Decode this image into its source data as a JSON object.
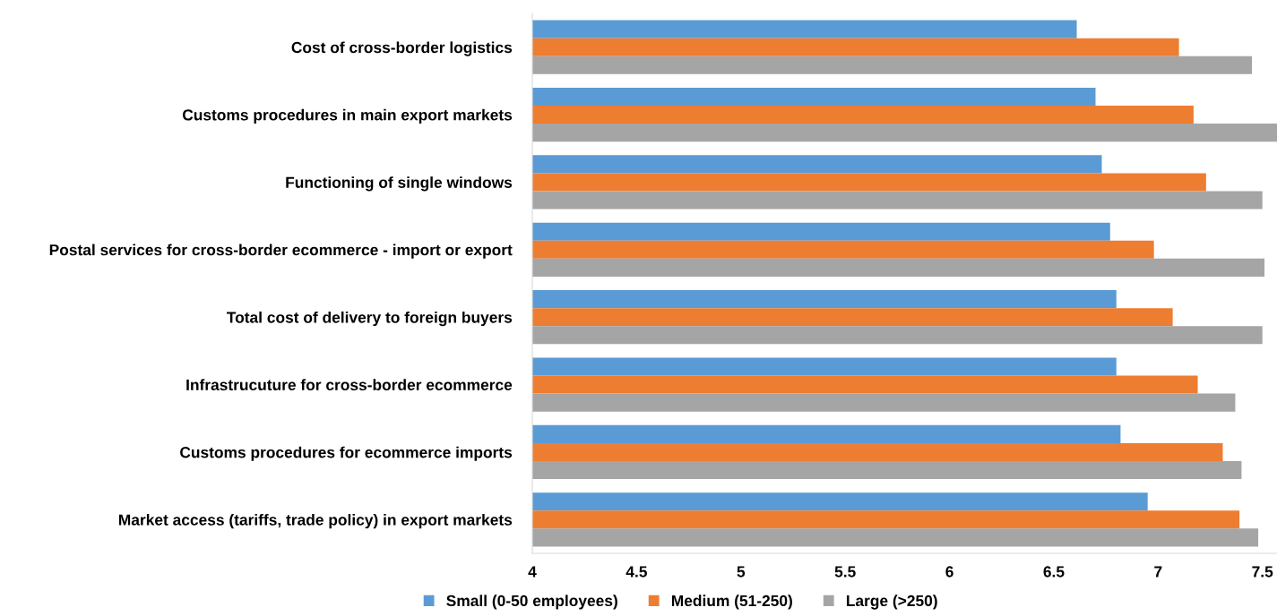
{
  "chart_data": {
    "type": "bar",
    "orientation": "horizontal",
    "categories": [
      "Cost of cross-border logistics",
      "Customs procedures in main export markets",
      "Functioning of single windows",
      "Postal services for cross-border ecommerce - import or export",
      "Total cost of delivery to foreign buyers",
      "Infrastrucuture for cross-border ecommerce",
      "Customs procedures for ecommerce imports",
      "Market access (tariffs, trade policy) in export markets"
    ],
    "series": [
      {
        "name": "Small (0-50 employees)",
        "color": "#5b9bd5",
        "values": [
          6.61,
          6.7,
          6.73,
          6.77,
          6.8,
          6.8,
          6.82,
          6.95
        ]
      },
      {
        "name": "Medium (51-250)",
        "color": "#ed7d31",
        "values": [
          7.1,
          7.17,
          7.23,
          6.98,
          7.07,
          7.19,
          7.31,
          7.39
        ]
      },
      {
        "name": "Large (>250)",
        "color": "#a5a5a5",
        "values": [
          7.45,
          7.57,
          7.5,
          7.51,
          7.5,
          7.37,
          7.4,
          7.48
        ]
      }
    ],
    "xlim": [
      4,
      7.57
    ],
    "xticks": [
      4,
      4.5,
      5,
      5.5,
      6,
      6.5,
      7,
      7.5
    ],
    "grid": false,
    "legend": "bottom"
  }
}
